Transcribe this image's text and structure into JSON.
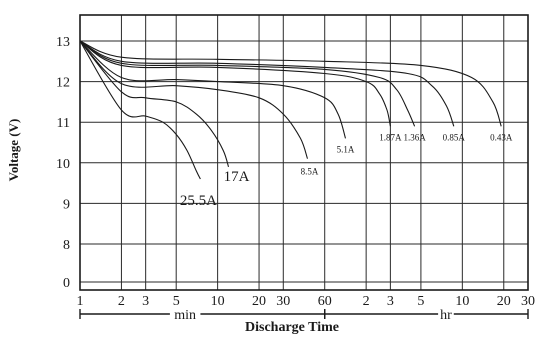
{
  "chart_data": {
    "type": "line",
    "title": "",
    "xlabel": "Discharge Time",
    "ylabel": "Voltage (V)",
    "ylim": [
      0,
      13.6
    ],
    "x_scale": "log",
    "grid": true,
    "x_unit_segments": [
      {
        "unit": "min",
        "ticks": [
          "1",
          "2",
          "3",
          "5",
          "10",
          "20",
          "30",
          "60"
        ]
      },
      {
        "unit": "hr",
        "ticks": [
          "2",
          "3",
          "5",
          "10",
          "20",
          "30"
        ]
      }
    ],
    "y_tick_labels": [
      "0",
      "8",
      "9",
      "10",
      "11",
      "12",
      "13"
    ],
    "x_tick_labels": [
      "1",
      "2",
      "3",
      "5",
      "10",
      "20",
      "30",
      "60",
      "2",
      "3",
      "5",
      "10",
      "20",
      "30"
    ],
    "unit_labels": [
      "min",
      "hr"
    ],
    "series": [
      {
        "name": "25.5A",
        "x_min": [
          1,
          2,
          3,
          4,
          5,
          6,
          7,
          7.5
        ],
        "y": [
          13.0,
          11.3,
          11.15,
          11.0,
          10.7,
          10.3,
          9.8,
          9.6
        ]
      },
      {
        "name": "17A",
        "x_min": [
          1,
          2,
          3,
          5,
          7,
          9,
          11,
          12
        ],
        "y": [
          13.0,
          11.75,
          11.6,
          11.5,
          11.2,
          10.8,
          10.3,
          9.9
        ]
      },
      {
        "name": "8.5A",
        "x_min": [
          1,
          2,
          5,
          10,
          20,
          30,
          40,
          45
        ],
        "y": [
          13.0,
          11.95,
          11.9,
          11.8,
          11.6,
          11.2,
          10.6,
          10.1
        ]
      },
      {
        "name": "5.1A",
        "x_min": [
          1,
          2,
          5,
          10,
          30,
          60,
          75,
          85
        ],
        "y": [
          13.0,
          12.1,
          12.05,
          12.0,
          11.9,
          11.6,
          11.2,
          10.6
        ]
      },
      {
        "name": "1.87A",
        "x_min": [
          1,
          2,
          10,
          60,
          120,
          150,
          170,
          180
        ],
        "y": [
          13.0,
          12.4,
          12.35,
          12.2,
          12.0,
          11.7,
          11.3,
          10.9
        ]
      },
      {
        "name": "1.36A",
        "x_min": [
          1,
          2,
          10,
          60,
          150,
          200,
          240,
          270
        ],
        "y": [
          13.0,
          12.45,
          12.4,
          12.3,
          12.1,
          11.8,
          11.3,
          10.9
        ]
      },
      {
        "name": "0.85A",
        "x_min": [
          1,
          2,
          10,
          60,
          240,
          360,
          460,
          520
        ],
        "y": [
          13.0,
          12.5,
          12.45,
          12.35,
          12.2,
          11.9,
          11.4,
          10.9
        ]
      },
      {
        "name": "0.43A",
        "x_min": [
          1,
          2,
          10,
          60,
          300,
          700,
          1000,
          1150
        ],
        "y": [
          13.0,
          12.6,
          12.55,
          12.5,
          12.4,
          12.1,
          11.5,
          10.9
        ]
      }
    ]
  }
}
